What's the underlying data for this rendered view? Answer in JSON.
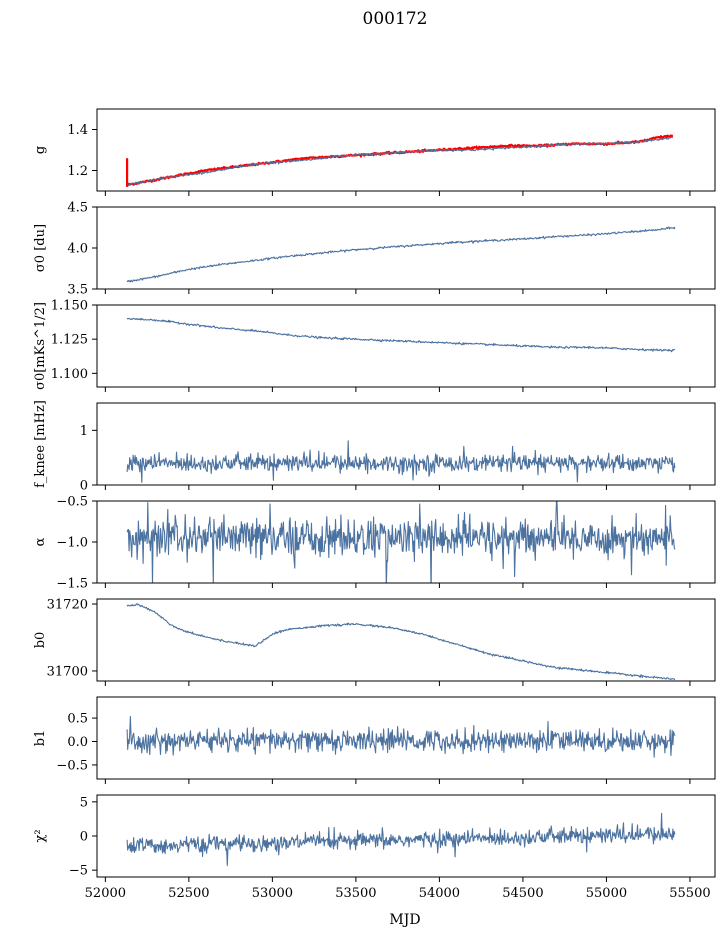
{
  "figure": {
    "title": "000172",
    "xlabel": "MJD"
  },
  "chart_data": {
    "type": "line",
    "title": "000172",
    "xlabel": "MJD",
    "xlim": [
      51950,
      55650
    ],
    "xticks": [
      52000,
      52500,
      53000,
      53500,
      54000,
      54500,
      55000,
      55500
    ],
    "x_tick_labels": [
      "52000",
      "52500",
      "53000",
      "53500",
      "54000",
      "54500",
      "55000",
      "55500"
    ],
    "x_range_data": [
      52130,
      55410
    ],
    "colors": {
      "series": "#4c72a0",
      "highlight": "#ff0000"
    },
    "panels": [
      {
        "ylabel": "g",
        "ylim": [
          1.1,
          1.5
        ],
        "yticks": [
          1.2,
          1.4
        ],
        "y_tick_labels": [
          "1.2",
          "1.4"
        ],
        "grid": false,
        "series": [
          {
            "color": "#ff0000",
            "x": [
              52130,
              52200,
              52400,
              52600,
              52800,
              53000,
              53200,
              53400,
              53600,
              53800,
              54000,
              54200,
              54400,
              54600,
              54800,
              55000,
              55200,
              55300,
              55400
            ],
            "y": [
              1.13,
              1.14,
              1.17,
              1.2,
              1.22,
              1.24,
              1.26,
              1.27,
              1.28,
              1.29,
              1.3,
              1.31,
              1.32,
              1.32,
              1.33,
              1.33,
              1.34,
              1.36,
              1.37
            ]
          },
          {
            "color": "#4c72a0",
            "x": [
              52130,
              52200,
              52400,
              52600,
              52800,
              53000,
              53200,
              53400,
              53600,
              53800,
              54000,
              54200,
              54400,
              54600,
              54800,
              55000,
              55200,
              55300,
              55400
            ],
            "y": [
              1.13,
              1.14,
              1.17,
              1.19,
              1.22,
              1.24,
              1.25,
              1.27,
              1.28,
              1.29,
              1.3,
              1.3,
              1.31,
              1.32,
              1.33,
              1.33,
              1.34,
              1.35,
              1.36
            ]
          },
          {
            "color": "#ff0000",
            "x": [
              52130,
              52130
            ],
            "y": [
              1.12,
              1.26
            ]
          }
        ]
      },
      {
        "ylabel": "σ0 [du]",
        "ylim": [
          3.5,
          4.5
        ],
        "yticks": [
          3.5,
          4.0,
          4.5
        ],
        "y_tick_labels": [
          "3.5",
          "4.0",
          "4.5"
        ],
        "grid": false,
        "series": [
          {
            "color": "#4c72a0",
            "x": [
              52130,
              52300,
              52500,
              52700,
              52900,
              53100,
              53300,
              53500,
              53700,
              53900,
              54100,
              54300,
              54500,
              54700,
              54900,
              55100,
              55300,
              55410
            ],
            "y": [
              3.59,
              3.65,
              3.74,
              3.8,
              3.85,
              3.9,
              3.94,
              3.98,
              4.01,
              4.04,
              4.07,
              4.09,
              4.11,
              4.14,
              4.16,
              4.19,
              4.22,
              4.25
            ]
          }
        ]
      },
      {
        "ylabel": "σ0[mKs^1/2]",
        "ylim": [
          1.09,
          1.15
        ],
        "yticks": [
          1.1,
          1.125,
          1.15
        ],
        "y_tick_labels": [
          "1.100",
          "1.125",
          "1.150"
        ],
        "grid": false,
        "series": [
          {
            "color": "#4c72a0",
            "x": [
              52130,
              52300,
              52500,
              52700,
              52900,
              53100,
              53300,
              53500,
              53700,
              53900,
              54100,
              54300,
              54500,
              54700,
              54900,
              55100,
              55300,
              55410
            ],
            "y": [
              1.14,
              1.139,
              1.136,
              1.133,
              1.131,
              1.128,
              1.126,
              1.125,
              1.124,
              1.123,
              1.122,
              1.121,
              1.12,
              1.119,
              1.119,
              1.118,
              1.117,
              1.117
            ]
          }
        ]
      },
      {
        "ylabel": "f_knee [mHz]",
        "ylim": [
          0,
          1.5
        ],
        "yticks": [
          0,
          1
        ],
        "y_tick_labels": [
          "0",
          "1"
        ],
        "grid": false,
        "series": [
          {
            "color": "#4c72a0",
            "mean": 0.4,
            "noise_sd": 0.08,
            "x_range": [
              52130,
              55410
            ]
          }
        ]
      },
      {
        "ylabel": "α",
        "ylim": [
          -1.5,
          -0.5
        ],
        "yticks": [
          -1.5,
          -1.0,
          -0.5
        ],
        "y_tick_labels": [
          "−1.5",
          "−1.0",
          "−0.5"
        ],
        "grid": false,
        "series": [
          {
            "color": "#4c72a0",
            "mean": -0.95,
            "noise_sd": 0.12,
            "x_range": [
              52130,
              55410
            ]
          }
        ]
      },
      {
        "ylabel": "b0",
        "ylim": [
          31697,
          31721.5
        ],
        "yticks": [
          31700,
          31720
        ],
        "y_tick_labels": [
          "31700",
          "31720"
        ],
        "grid": false,
        "series": [
          {
            "color": "#4c72a0",
            "x": [
              52130,
              52200,
              52300,
              52400,
              52500,
              52700,
              52900,
              53000,
              53100,
              53300,
              53500,
              53700,
              53900,
              54100,
              54300,
              54500,
              54700,
              54900,
              55100,
              55300,
              55410
            ],
            "y": [
              31719.5,
              31719.8,
              31717.5,
              31713.5,
              31711.5,
              31709.0,
              31707.5,
              31711.0,
              31712.5,
              31713.5,
              31714.0,
              31713.0,
              31711.0,
              31708.0,
              31705.0,
              31703.0,
              31701.0,
              31700.0,
              31699.0,
              31698.0,
              31697.5
            ]
          }
        ]
      },
      {
        "ylabel": "b1",
        "ylim": [
          -0.8,
          0.95
        ],
        "yticks": [
          -0.5,
          0.0,
          0.5
        ],
        "y_tick_labels": [
          "−0.5",
          "0.0",
          "0.5"
        ],
        "grid": false,
        "series": [
          {
            "color": "#4c72a0",
            "mean": 0.02,
            "noise_sd": 0.12,
            "x_range": [
              52130,
              55410
            ]
          }
        ]
      },
      {
        "ylabel": "χ²",
        "ylim": [
          -6,
          6
        ],
        "yticks": [
          -5,
          0,
          5
        ],
        "y_tick_labels": [
          "−5",
          "0",
          "5"
        ],
        "grid": false,
        "series": [
          {
            "color": "#4c72a0",
            "mean_start": -1.5,
            "mean_end": 0.3,
            "noise_sd": 0.6,
            "x_range": [
              52130,
              55410
            ]
          }
        ]
      }
    ]
  }
}
